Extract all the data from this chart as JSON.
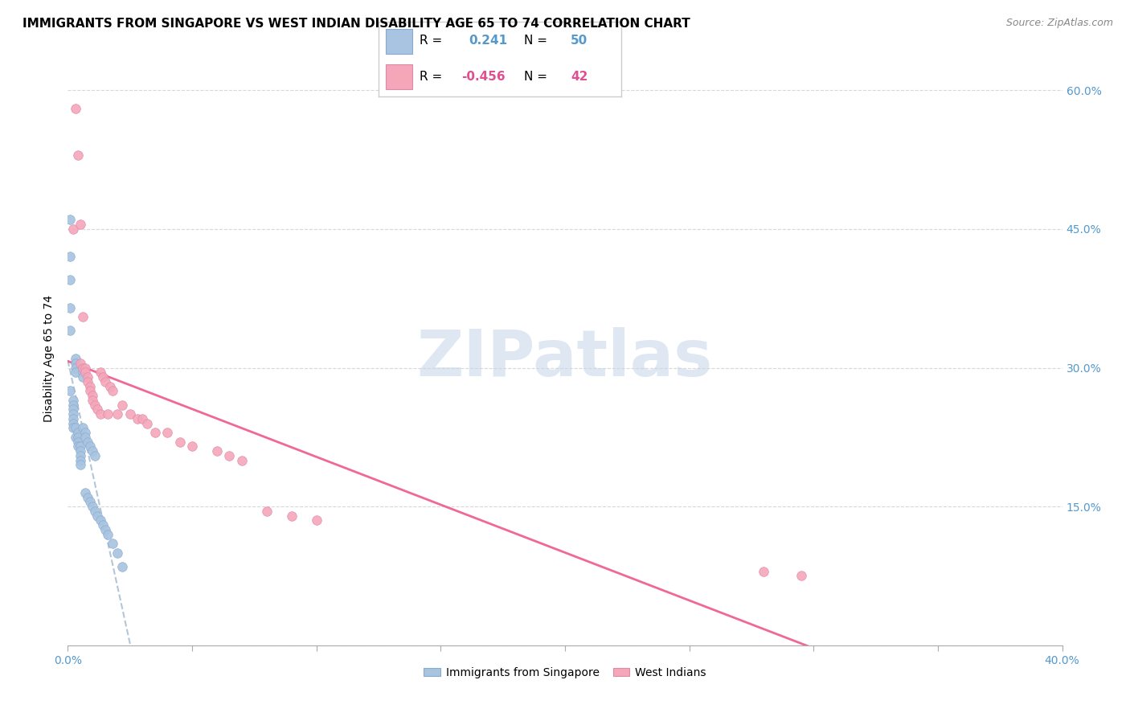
{
  "title": "IMMIGRANTS FROM SINGAPORE VS WEST INDIAN DISABILITY AGE 65 TO 74 CORRELATION CHART",
  "source": "Source: ZipAtlas.com",
  "ylabel": "Disability Age 65 to 74",
  "xlim": [
    0.0,
    0.4
  ],
  "ylim": [
    0.0,
    0.62
  ],
  "xticks": [
    0.0,
    0.05,
    0.1,
    0.15,
    0.2,
    0.25,
    0.3,
    0.35,
    0.4
  ],
  "xticklabels": [
    "0.0%",
    "",
    "",
    "",
    "",
    "",
    "",
    "",
    "40.0%"
  ],
  "yticks": [
    0.0,
    0.15,
    0.3,
    0.45,
    0.6
  ],
  "yticklabels_right": [
    "",
    "15.0%",
    "30.0%",
    "45.0%",
    "60.0%"
  ],
  "singapore_R": 0.241,
  "singapore_N": 50,
  "westindian_R": -0.456,
  "westindian_N": 42,
  "singapore_color": "#a8c4e0",
  "westindian_color": "#f4a7b9",
  "singapore_trend_color": "#a0b8d0",
  "westindian_trend_color": "#f06090",
  "background_color": "#ffffff",
  "grid_color": "#d8d8d8",
  "watermark_text": "ZIPatlas",
  "watermark_color": "#c8d8ea",
  "sg_x": [
    0.001,
    0.001,
    0.001,
    0.001,
    0.001,
    0.001,
    0.002,
    0.002,
    0.002,
    0.002,
    0.002,
    0.002,
    0.002,
    0.003,
    0.003,
    0.003,
    0.003,
    0.003,
    0.003,
    0.004,
    0.004,
    0.004,
    0.004,
    0.005,
    0.005,
    0.005,
    0.005,
    0.005,
    0.006,
    0.006,
    0.006,
    0.007,
    0.007,
    0.007,
    0.008,
    0.008,
    0.009,
    0.009,
    0.01,
    0.01,
    0.011,
    0.011,
    0.012,
    0.013,
    0.014,
    0.015,
    0.016,
    0.018,
    0.02,
    0.022
  ],
  "sg_y": [
    0.46,
    0.42,
    0.395,
    0.365,
    0.34,
    0.275,
    0.265,
    0.26,
    0.255,
    0.25,
    0.245,
    0.24,
    0.235,
    0.235,
    0.31,
    0.305,
    0.3,
    0.295,
    0.225,
    0.23,
    0.225,
    0.22,
    0.215,
    0.215,
    0.21,
    0.205,
    0.2,
    0.195,
    0.295,
    0.29,
    0.235,
    0.23,
    0.225,
    0.165,
    0.22,
    0.16,
    0.215,
    0.155,
    0.21,
    0.15,
    0.205,
    0.145,
    0.14,
    0.135,
    0.13,
    0.125,
    0.12,
    0.11,
    0.1,
    0.085
  ],
  "wi_x": [
    0.002,
    0.003,
    0.004,
    0.005,
    0.005,
    0.006,
    0.006,
    0.007,
    0.007,
    0.008,
    0.008,
    0.009,
    0.009,
    0.01,
    0.01,
    0.011,
    0.012,
    0.013,
    0.013,
    0.014,
    0.015,
    0.016,
    0.017,
    0.018,
    0.02,
    0.022,
    0.025,
    0.028,
    0.03,
    0.032,
    0.035,
    0.04,
    0.045,
    0.05,
    0.06,
    0.065,
    0.07,
    0.08,
    0.09,
    0.1,
    0.28,
    0.295
  ],
  "wi_y": [
    0.45,
    0.58,
    0.53,
    0.455,
    0.305,
    0.355,
    0.3,
    0.3,
    0.295,
    0.29,
    0.285,
    0.28,
    0.275,
    0.27,
    0.265,
    0.26,
    0.255,
    0.25,
    0.295,
    0.29,
    0.285,
    0.25,
    0.28,
    0.275,
    0.25,
    0.26,
    0.25,
    0.245,
    0.245,
    0.24,
    0.23,
    0.23,
    0.22,
    0.215,
    0.21,
    0.205,
    0.2,
    0.145,
    0.14,
    0.135,
    0.08,
    0.075
  ]
}
